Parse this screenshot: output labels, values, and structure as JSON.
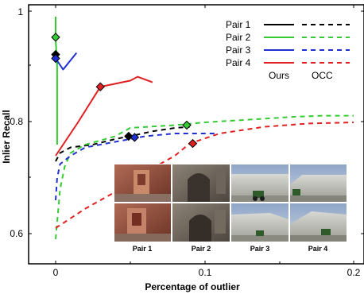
{
  "chart_data": {
    "type": "line",
    "xlabel": "Percentage of outlier",
    "ylabel": "Inlier Recall",
    "xlim": [
      -0.006,
      0.205
    ],
    "ylim": [
      0.55,
      1.01
    ],
    "xticks": [
      0,
      0.1,
      0.2
    ],
    "xtick_labels": [
      "0",
      "0.1",
      "0.2"
    ],
    "yticks": [
      0.6,
      0.8,
      1.0
    ],
    "ytick_labels": [
      "0.6",
      "0.8",
      "1"
    ],
    "grid": false,
    "legend_position": "top-right",
    "legend_column_labels": [
      "Ours",
      "OCC"
    ],
    "series": [
      {
        "name": "Pair 1",
        "color": "#000000",
        "ours": [
          [
            0,
            0.92
          ],
          [
            0.001,
            0.91
          ],
          [
            0.001,
            0.905
          ]
        ],
        "ours_marker": [
          0,
          0.922
        ],
        "occ": [
          [
            0,
            0.73
          ],
          [
            0.003,
            0.745
          ],
          [
            0.01,
            0.755
          ],
          [
            0.025,
            0.76
          ],
          [
            0.04,
            0.77
          ],
          [
            0.055,
            0.778
          ],
          [
            0.065,
            0.784
          ],
          [
            0.08,
            0.79
          ],
          [
            0.09,
            0.792
          ]
        ],
        "occ_marker": [
          0.049,
          0.775
        ]
      },
      {
        "name": "Pair 2",
        "color": "#33cc33",
        "ours": [
          [
            0,
            0.99
          ],
          [
            0,
            0.95
          ],
          [
            0.001,
            0.9
          ],
          [
            0.001,
            0.85
          ],
          [
            0.001,
            0.8
          ],
          [
            0.001,
            0.76
          ]
        ],
        "ours_marker": [
          0,
          0.953
        ],
        "occ": [
          [
            0,
            0.59
          ],
          [
            0.001,
            0.62
          ],
          [
            0.003,
            0.68
          ],
          [
            0.006,
            0.72
          ],
          [
            0.01,
            0.745
          ],
          [
            0.02,
            0.76
          ],
          [
            0.04,
            0.775
          ],
          [
            0.05,
            0.79
          ],
          [
            0.08,
            0.795
          ],
          [
            0.1,
            0.8
          ],
          [
            0.13,
            0.805
          ],
          [
            0.16,
            0.81
          ],
          [
            0.18,
            0.812
          ],
          [
            0.2,
            0.812
          ]
        ],
        "occ_marker": [
          0.088,
          0.795
        ]
      },
      {
        "name": "Pair 3",
        "color": "#1f2fd1",
        "ours": [
          [
            0,
            0.915
          ],
          [
            0.005,
            0.895
          ],
          [
            0.014,
            0.925
          ]
        ],
        "ours_marker": [
          0,
          0.915
        ],
        "occ": [
          [
            0,
            0.66
          ],
          [
            0.001,
            0.7
          ],
          [
            0.003,
            0.725
          ],
          [
            0.01,
            0.74
          ],
          [
            0.02,
            0.755
          ],
          [
            0.04,
            0.765
          ],
          [
            0.06,
            0.775
          ],
          [
            0.08,
            0.78
          ],
          [
            0.1,
            0.78
          ],
          [
            0.108,
            0.78
          ]
        ],
        "occ_marker": [
          0.053,
          0.773
        ]
      },
      {
        "name": "Pair 4",
        "color": "#e02020",
        "ours": [
          [
            0,
            0.74
          ],
          [
            0.005,
            0.76
          ],
          [
            0.015,
            0.8
          ],
          [
            0.03,
            0.864
          ],
          [
            0.05,
            0.875
          ],
          [
            0.055,
            0.882
          ],
          [
            0.065,
            0.872
          ]
        ],
        "ours_marker": [
          0.03,
          0.864
        ],
        "occ": [
          [
            0,
            0.61
          ],
          [
            0.02,
            0.645
          ],
          [
            0.04,
            0.675
          ],
          [
            0.06,
            0.71
          ],
          [
            0.08,
            0.74
          ],
          [
            0.09,
            0.762
          ],
          [
            0.11,
            0.78
          ],
          [
            0.14,
            0.792
          ],
          [
            0.17,
            0.798
          ],
          [
            0.2,
            0.8
          ]
        ],
        "occ_marker": [
          0.092,
          0.762
        ]
      }
    ],
    "inset_captions": [
      "Pair 1",
      "Pair 2",
      "Pair 3",
      "Pair 4"
    ]
  }
}
